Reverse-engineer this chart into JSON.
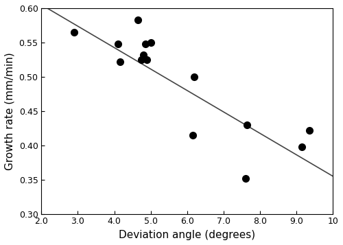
{
  "scatter_x": [
    2.9,
    4.1,
    4.15,
    4.65,
    4.75,
    4.8,
    4.85,
    4.9,
    5.0,
    6.15,
    6.2,
    7.6,
    7.65,
    9.15,
    9.35
  ],
  "scatter_y": [
    0.565,
    0.548,
    0.522,
    0.583,
    0.525,
    0.532,
    0.548,
    0.525,
    0.55,
    0.415,
    0.5,
    0.352,
    0.43,
    0.398,
    0.422
  ],
  "line_x": [
    2.0,
    10.0
  ],
  "line_y": [
    0.605,
    0.355
  ],
  "xlabel": "Deviation angle (degrees)",
  "ylabel": "Growth rate (mm/min)",
  "xlim": [
    2.0,
    10.0
  ],
  "ylim": [
    0.3,
    0.6
  ],
  "xticks": [
    2.0,
    3.0,
    4.0,
    5.0,
    6.0,
    7.0,
    8.0,
    9.0,
    10.0
  ],
  "xtick_labels": [
    "2.0",
    "3.0",
    "4.0",
    "5.0",
    "6.0",
    "7.0",
    "8.0",
    "9.0",
    "10"
  ],
  "yticks": [
    0.3,
    0.35,
    0.4,
    0.45,
    0.5,
    0.55,
    0.6
  ],
  "ytick_labels": [
    "0.30",
    "0.35",
    "0.40",
    "0.45",
    "0.50",
    "0.55",
    "0.60"
  ],
  "marker_color": "black",
  "marker_size": 7,
  "line_color": "#444444",
  "line_width": 1.2,
  "bg_color": "white"
}
